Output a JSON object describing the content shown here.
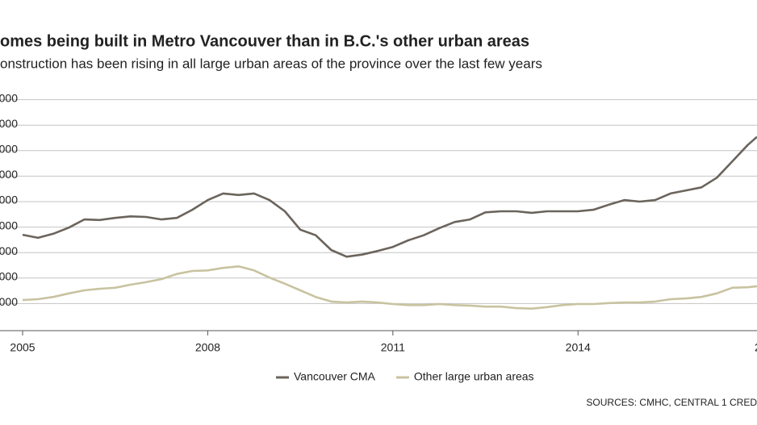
{
  "chart_data": {
    "type": "line",
    "title": "omes being built in Metro Vancouver than in B.C.'s other urban areas",
    "subtitle": "onstruction has been rising in all large urban areas of the province over the last few years",
    "source": "SOURCES: CMHC, CENTRAL 1 CRED",
    "x": [
      2005,
      2005.25,
      2005.5,
      2005.75,
      2006,
      2006.25,
      2006.5,
      2006.75,
      2007,
      2007.25,
      2007.5,
      2007.75,
      2008,
      2008.25,
      2008.5,
      2008.75,
      2009,
      2009.25,
      2009.5,
      2009.75,
      2010,
      2010.25,
      2010.5,
      2010.75,
      2011,
      2011.25,
      2011.5,
      2011.75,
      2012,
      2012.25,
      2012.5,
      2012.75,
      2013,
      2013.25,
      2013.5,
      2013.75,
      2014,
      2014.25,
      2014.5,
      2014.75,
      2015,
      2015.25,
      2015.5,
      2015.75,
      2016,
      2016.25,
      2016.5,
      2016.75,
      2016.9
    ],
    "series": [
      {
        "name": "Vancouver CMA",
        "color": "#6b645c",
        "values": [
          18500,
          17900,
          18700,
          19900,
          21500,
          21400,
          21800,
          22100,
          22000,
          21500,
          21800,
          23400,
          25300,
          26600,
          26300,
          26600,
          25300,
          23100,
          19500,
          18400,
          15500,
          14200,
          14600,
          15300,
          16100,
          17400,
          18400,
          19800,
          21000,
          21500,
          22900,
          23100,
          23100,
          22800,
          23100,
          23100,
          23100,
          23400,
          24400,
          25300,
          25000,
          25300,
          26600,
          27200,
          27800,
          29700,
          32900,
          36100,
          37700
        ]
      },
      {
        "name": "Other large urban areas",
        "color": "#c8c3a0",
        "values": [
          5700,
          5850,
          6300,
          7000,
          7600,
          7900,
          8100,
          8700,
          9200,
          9800,
          10800,
          11400,
          11500,
          12000,
          12300,
          11500,
          10100,
          8900,
          7600,
          6300,
          5400,
          5200,
          5400,
          5200,
          4900,
          4700,
          4700,
          4900,
          4700,
          4600,
          4400,
          4400,
          4100,
          4000,
          4300,
          4700,
          4900,
          4900,
          5100,
          5200,
          5200,
          5400,
          5850,
          6000,
          6300,
          7000,
          8100,
          8200,
          8400
        ]
      }
    ],
    "xlim": [
      2005,
      2016.9
    ],
    "xticks": [
      2005,
      2008,
      2011,
      2014,
      {
        "value": 2017,
        "label": "2"
      }
    ],
    "ylim": [
      0,
      45000
    ],
    "yticks": [
      {
        "value": 5000,
        "label": "000"
      },
      {
        "value": 10000,
        "label": "000"
      },
      {
        "value": 15000,
        "label": "000"
      },
      {
        "value": 20000,
        "label": "000"
      },
      {
        "value": 25000,
        "label": "000"
      },
      {
        "value": 30000,
        "label": "000"
      },
      {
        "value": 35000,
        "label": "000"
      },
      {
        "value": 40000,
        "label": "000"
      },
      {
        "value": 45000,
        "label": "000"
      }
    ],
    "grid": true
  }
}
